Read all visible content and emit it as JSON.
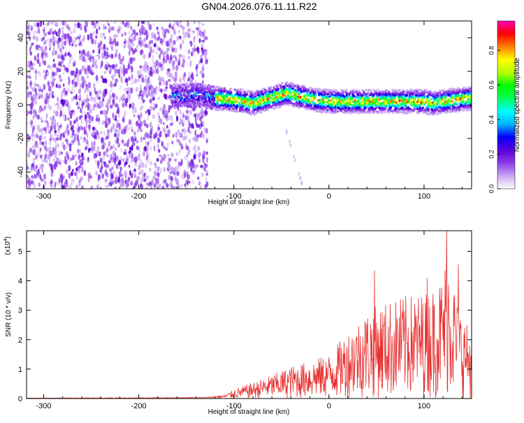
{
  "title": "GN04.2026.076.11.11.R22",
  "chart_data": [
    {
      "type": "heatmap",
      "name": "spectrogram",
      "xlabel": "Height of straight line (km)",
      "ylabel": "Frequency (Hz)",
      "xlim": [
        -318,
        150
      ],
      "ylim": [
        -50,
        50
      ],
      "xticks": [
        -300,
        -200,
        -100,
        0,
        100
      ],
      "yticks": [
        -40,
        -20,
        0,
        20,
        40
      ],
      "noise_region_x": [
        -318,
        -128
      ],
      "signal_track": {
        "x": [
          -160,
          -140,
          -120,
          -100,
          -80,
          -60,
          -45,
          -30,
          -15,
          0,
          20,
          40,
          60,
          80,
          100,
          110,
          120,
          135,
          150
        ],
        "freq": [
          5,
          6,
          4,
          3,
          1,
          4,
          7,
          5,
          3,
          2,
          2,
          2,
          2,
          2,
          2,
          1,
          2,
          3,
          4
        ]
      },
      "faint_tail": {
        "x": [
          -45,
          -28
        ],
        "freq": [
          -15,
          -48
        ]
      },
      "colorbar": {
        "label": "Normalized spectral amplitude",
        "ticks": [
          "0.0",
          "0.2",
          "0.4",
          "0.6",
          "0.8"
        ],
        "range": [
          0,
          0.97
        ],
        "colors": [
          "#ffffff",
          "#c9a6f2",
          "#8c3ce8",
          "#5a00d8",
          "#0000ff",
          "#00b4ff",
          "#00ffff",
          "#00ff5a",
          "#00ff00",
          "#b4ff00",
          "#ffff00",
          "#ff8000",
          "#ff0000",
          "#ff00b4"
        ]
      }
    },
    {
      "type": "line",
      "name": "snr",
      "xlabel": "Height of straight line (km)",
      "ylabel": "SNR (10 * v/v)",
      "multiplier": "(x10",
      "multiplier_exp": "4",
      "multiplier_close": ")",
      "xlim": [
        -318,
        150
      ],
      "ylim": [
        0,
        5.7
      ],
      "xticks": [
        -300,
        -200,
        -100,
        0,
        100
      ],
      "yticks": [
        0,
        1,
        2,
        3,
        4,
        5
      ],
      "color": "#e83030",
      "envelope": {
        "x": [
          -318,
          -200,
          -130,
          -110,
          -100,
          -80,
          -60,
          -40,
          -20,
          0,
          15,
          25,
          40,
          60,
          80,
          100,
          110,
          120,
          125,
          135,
          150
        ],
        "y": [
          0.02,
          0.03,
          0.05,
          0.12,
          0.3,
          0.55,
          0.8,
          1.1,
          1.3,
          1.5,
          2.1,
          2.5,
          3.0,
          3.3,
          3.5,
          3.6,
          3.8,
          4.2,
          5.4,
          3.3,
          2.2
        ]
      },
      "peaks": [
        {
          "x": 48,
          "y": 4.35
        },
        {
          "x": 103,
          "y": 4.1
        },
        {
          "x": 124,
          "y": 5.68
        },
        {
          "x": 136,
          "y": 4.55
        }
      ]
    }
  ]
}
